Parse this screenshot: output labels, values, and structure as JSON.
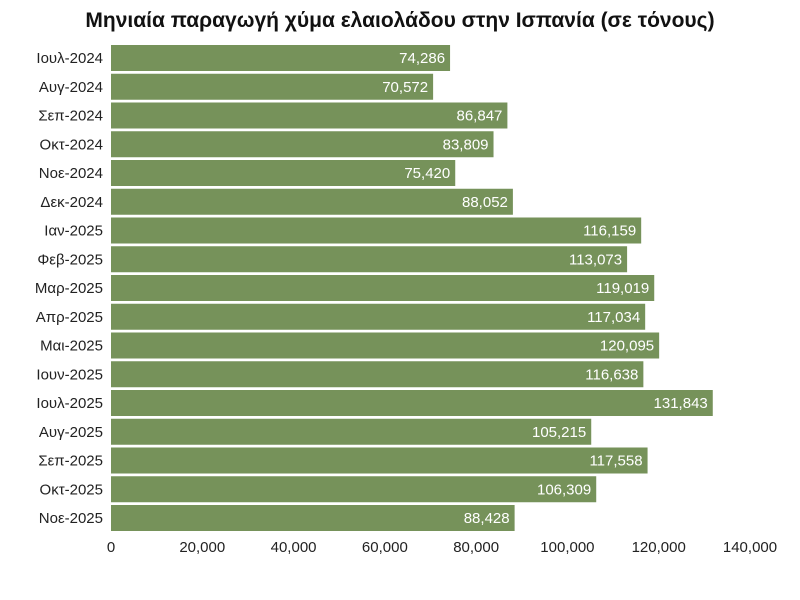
{
  "chart_data": {
    "type": "bar",
    "orientation": "horizontal",
    "title": "Μηνιαία παραγωγή χύμα ελαιολάδου στην Ισπανία (σε τόνους)",
    "xlabel": "",
    "ylabel": "",
    "categories": [
      "Ιουλ-2024",
      "Αυγ-2024",
      "Σεπ-2024",
      "Οκτ-2024",
      "Νοε-2024",
      "Δεκ-2024",
      "Ιαν-2025",
      "Φεβ-2025",
      "Μαρ-2025",
      "Απρ-2025",
      "Μαι-2025",
      "Ιουν-2025",
      "Ιουλ-2025",
      "Αυγ-2025",
      "Σεπ-2025",
      "Οκτ-2025",
      "Νοε-2025"
    ],
    "values": [
      74286,
      70572,
      86847,
      83809,
      75420,
      88052,
      116159,
      113073,
      119019,
      117034,
      120095,
      116638,
      131843,
      105215,
      117558,
      106309,
      88428
    ],
    "value_labels": [
      "74,286",
      "70,572",
      "86,847",
      "83,809",
      "75,420",
      "88,052",
      "116,159",
      "113,073",
      "119,019",
      "117,034",
      "120,095",
      "116,638",
      "131,843",
      "105,215",
      "117,558",
      "106,309",
      "88,428"
    ],
    "xlim": [
      0,
      140000
    ],
    "ticks": [
      0,
      20000,
      40000,
      60000,
      80000,
      100000,
      120000,
      140000
    ],
    "tick_labels": [
      "0",
      "20,000",
      "40,000",
      "60,000",
      "80,000",
      "100,000",
      "120,000",
      "140,000"
    ],
    "bar_color": "#76925a",
    "grid": false,
    "legend": "none"
  }
}
